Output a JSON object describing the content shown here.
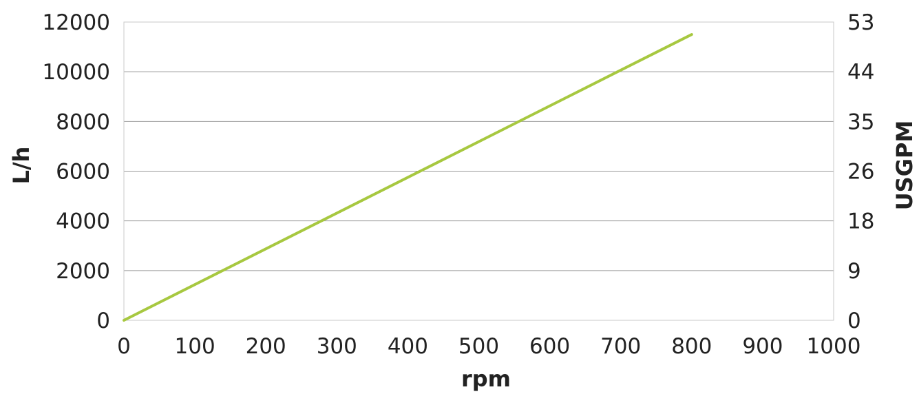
{
  "chart_data": {
    "type": "line",
    "title": "",
    "xlabel": "rpm",
    "ylabel": "L/h",
    "y2label": "USGPM",
    "xlim": [
      0,
      1000
    ],
    "ylim": [
      0,
      12000
    ],
    "x_ticks": [
      "0",
      "100",
      "200",
      "300",
      "400",
      "500",
      "600",
      "700",
      "800",
      "900",
      "1000"
    ],
    "y_ticks": [
      "0",
      "2000",
      "4000",
      "6000",
      "8000",
      "10000",
      "12000"
    ],
    "y2_ticks": [
      "0",
      "9",
      "18",
      "26",
      "35",
      "44",
      "53"
    ],
    "grid": true,
    "legend": "none",
    "colors": {
      "line": "#a7c840",
      "grid": "#9a9a9a",
      "text": "#222222"
    },
    "series": [
      {
        "x": [
          0,
          800
        ],
        "y": [
          0,
          11500
        ]
      }
    ]
  }
}
